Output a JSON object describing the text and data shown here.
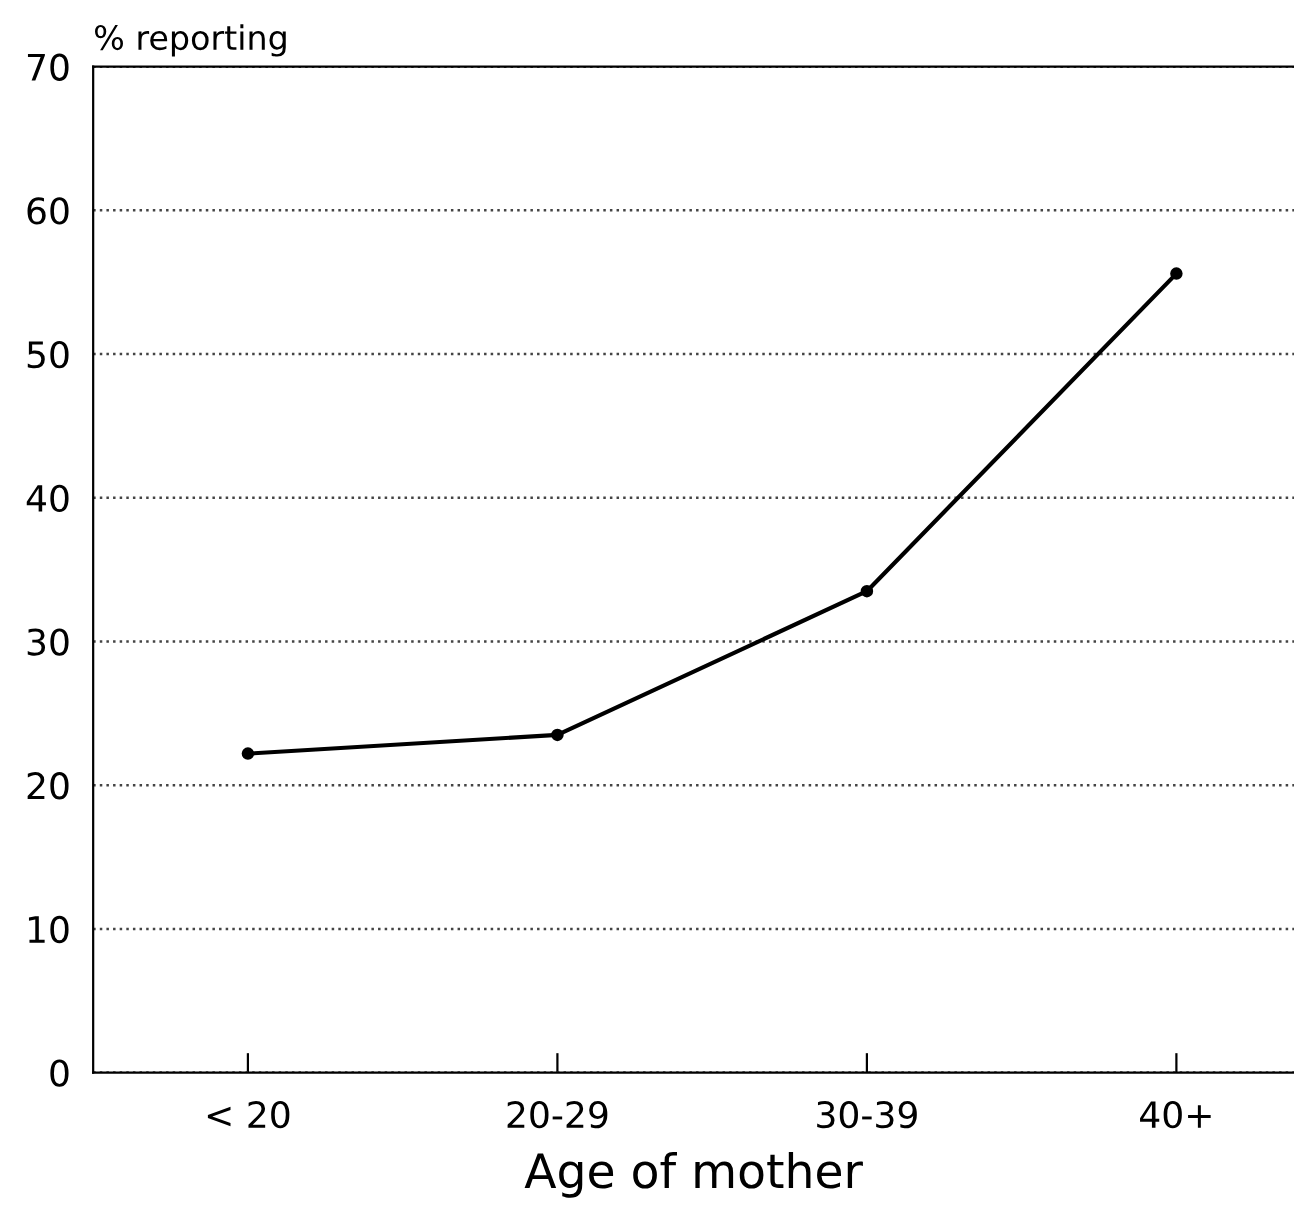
{
  "chart_data": {
    "type": "line",
    "ylabel": "% reporting",
    "xlabel": "Age of mother",
    "categories": [
      "< 20",
      "20-29",
      "30-39",
      "40+"
    ],
    "series": [
      {
        "color": "#000000",
        "values": [
          22.2,
          23.5,
          33.5,
          55.6
        ]
      }
    ],
    "ylim": [
      0,
      70
    ],
    "yticks": [
      0,
      10,
      20,
      30,
      40,
      50,
      60,
      70
    ],
    "grid": "y",
    "legend": false,
    "marker": "circle",
    "line_style": "solid"
  }
}
